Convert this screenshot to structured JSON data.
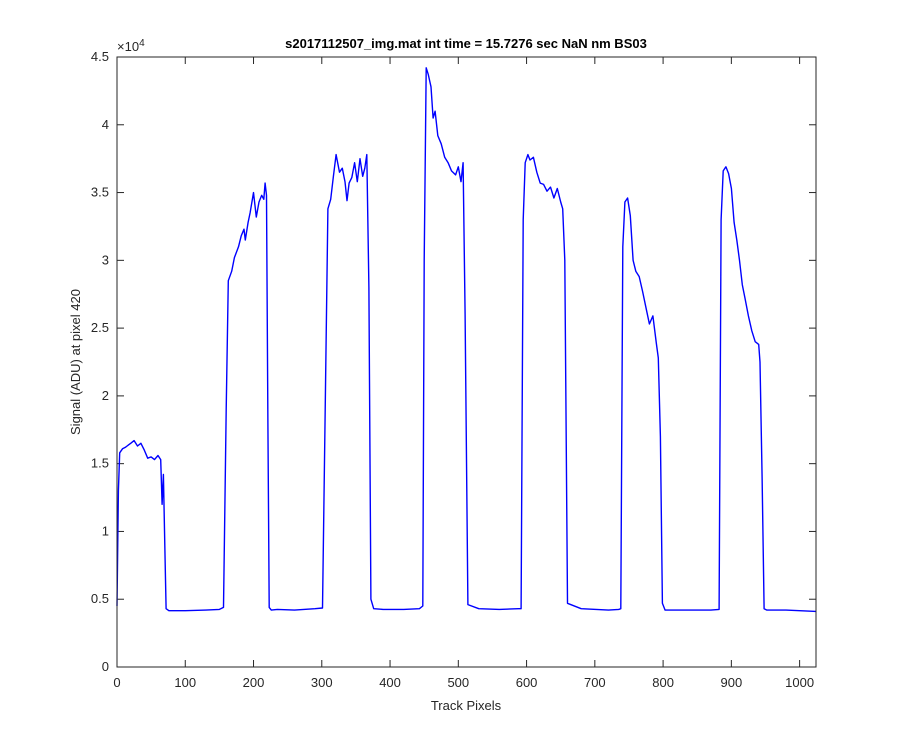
{
  "chart_data": {
    "type": "line",
    "title": "s2017112507_img.mat int time = 15.7276 sec  NaN nm BS03",
    "xlabel": "Track Pixels",
    "ylabel": "Signal (ADU) at pixel 420",
    "y_multiplier": "×10",
    "y_multiplier_exp": "4",
    "xlim": [
      0,
      1024
    ],
    "ylim": [
      0,
      45000
    ],
    "x_ticks": [
      0,
      100,
      200,
      300,
      400,
      500,
      600,
      700,
      800,
      900,
      1000
    ],
    "x_tick_labels": [
      "0",
      "100",
      "200",
      "300",
      "400",
      "500",
      "600",
      "700",
      "800",
      "900",
      "1000"
    ],
    "y_ticks": [
      0,
      5000,
      10000,
      15000,
      20000,
      25000,
      30000,
      35000,
      40000,
      45000
    ],
    "y_tick_labels": [
      "0",
      "0.5",
      "1",
      "1.5",
      "2",
      "2.5",
      "3",
      "3.5",
      "4",
      "4.5"
    ],
    "grid": false,
    "series": [
      {
        "color": "#0000ff",
        "x": [
          0,
          2,
          4,
          8,
          12,
          20,
          25,
          30,
          35,
          40,
          45,
          50,
          55,
          60,
          64,
          66,
          68,
          70,
          72,
          76,
          80,
          100,
          130,
          150,
          156,
          160,
          163,
          168,
          172,
          178,
          182,
          186,
          188,
          192,
          195,
          200,
          204,
          208,
          212,
          215,
          217,
          219,
          221,
          223,
          226,
          235,
          260,
          290,
          301,
          305,
          309,
          313,
          317,
          321,
          326,
          330,
          334,
          337,
          340,
          344,
          348,
          352,
          356,
          360,
          363,
          366,
          369,
          372,
          376,
          390,
          420,
          443,
          448,
          450,
          453,
          456,
          460,
          463,
          466,
          470,
          475,
          480,
          485,
          490,
          496,
          500,
          504,
          507,
          510,
          514,
          530,
          560,
          588,
          592,
          595,
          598,
          602,
          605,
          610,
          615,
          620,
          625,
          630,
          635,
          640,
          645,
          650,
          653,
          656,
          660,
          680,
          720,
          735,
          738,
          741,
          744,
          748,
          752,
          756,
          760,
          765,
          770,
          775,
          780,
          785,
          790,
          793,
          796,
          799,
          803,
          830,
          870,
          882,
          885,
          888,
          892,
          896,
          900,
          904,
          908,
          912,
          916,
          920,
          925,
          930,
          935,
          940,
          942,
          945,
          948,
          952,
          980,
          1000,
          1024
        ],
        "y": [
          4500,
          13000,
          15800,
          16100,
          16200,
          16500,
          16700,
          16300,
          16500,
          16000,
          15400,
          15500,
          15300,
          15600,
          15300,
          12000,
          14200,
          9000,
          4300,
          4150,
          4150,
          4150,
          4200,
          4250,
          4400,
          19000,
          28500,
          29200,
          30200,
          31000,
          31800,
          32300,
          31500,
          32800,
          33500,
          35000,
          33200,
          34300,
          34800,
          34500,
          35700,
          34800,
          18000,
          4400,
          4200,
          4250,
          4200,
          4300,
          4350,
          19000,
          33800,
          34500,
          36200,
          37800,
          36500,
          36800,
          35800,
          34400,
          35700,
          36100,
          37200,
          35800,
          37500,
          36200,
          36800,
          37800,
          28000,
          5000,
          4300,
          4250,
          4250,
          4300,
          4500,
          30000,
          44200,
          43700,
          42800,
          40500,
          41000,
          39200,
          38600,
          37600,
          37200,
          36600,
          36300,
          36900,
          35800,
          37200,
          26000,
          4600,
          4300,
          4250,
          4300,
          4300,
          33000,
          37200,
          37800,
          37400,
          37600,
          36500,
          35700,
          35600,
          35100,
          35400,
          34600,
          35300,
          34300,
          33800,
          30000,
          4700,
          4300,
          4200,
          4250,
          4300,
          31000,
          34300,
          34600,
          33300,
          30000,
          29200,
          28800,
          27700,
          26500,
          25300,
          25900,
          23900,
          22800,
          17000,
          4700,
          4200,
          4200,
          4200,
          4250,
          33000,
          36600,
          36900,
          36400,
          35300,
          32800,
          31500,
          30000,
          28200,
          27200,
          25900,
          24800,
          24000,
          23800,
          22500,
          14000,
          4300,
          4200,
          4200,
          4150,
          4100
        ]
      }
    ]
  }
}
